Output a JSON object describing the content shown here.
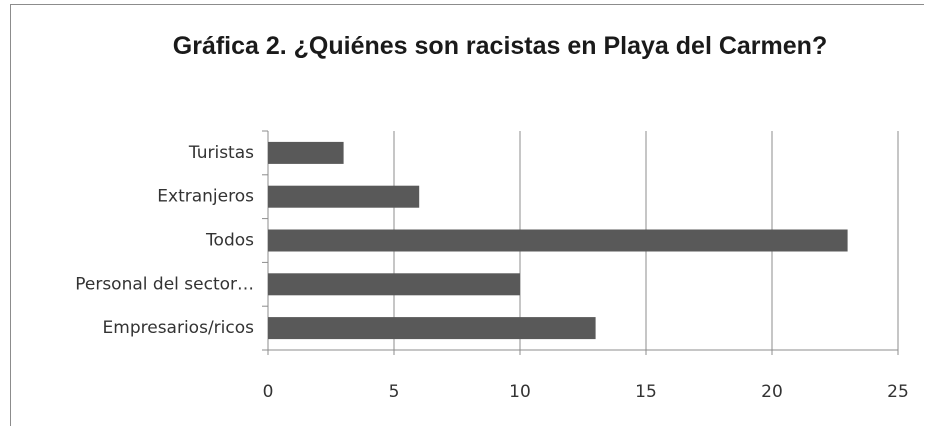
{
  "chart_data": {
    "type": "bar",
    "orientation": "horizontal",
    "title": "Gráfica 2. ¿Quiénes son racistas en Playa del Carmen?",
    "categories": [
      "Turistas",
      "Extranjeros",
      "Todos",
      "Personal del sector…",
      "Empresarios/ricos"
    ],
    "values": [
      3,
      6,
      23,
      10,
      13
    ],
    "color": "#595959",
    "xlim": [
      0,
      25
    ],
    "xticks": [
      0,
      5,
      10,
      15,
      20,
      25
    ],
    "grid": true
  }
}
